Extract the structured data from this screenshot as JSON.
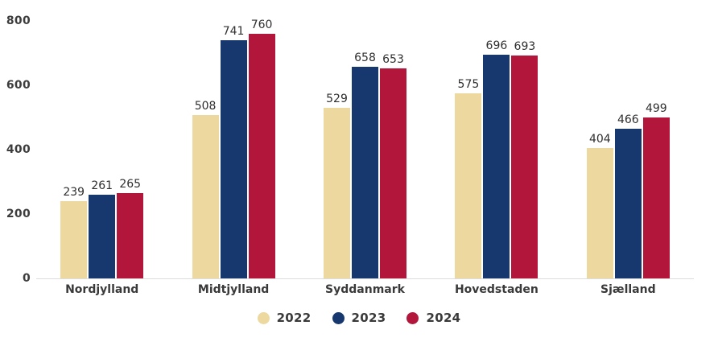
{
  "chart_data": {
    "type": "bar",
    "categories": [
      "Nordjylland",
      "Midtjylland",
      "Syddanmark",
      "Hovedstaden",
      "Sjælland"
    ],
    "series": [
      {
        "name": "2022",
        "color": "#EDD9A0",
        "values": [
          239,
          508,
          529,
          575,
          404
        ]
      },
      {
        "name": "2023",
        "color": "#17386E",
        "values": [
          261,
          741,
          658,
          696,
          466
        ]
      },
      {
        "name": "2024",
        "color": "#B2163B",
        "values": [
          265,
          760,
          653,
          693,
          499
        ]
      }
    ],
    "title": "",
    "xlabel": "",
    "ylabel": "",
    "ylim": [
      0,
      800
    ],
    "yticks": [
      0,
      200,
      400,
      600,
      800
    ],
    "grid": false,
    "legend_position": "bottom",
    "axis_line_color": "#dcdcdc",
    "value_labels_shown": true
  }
}
